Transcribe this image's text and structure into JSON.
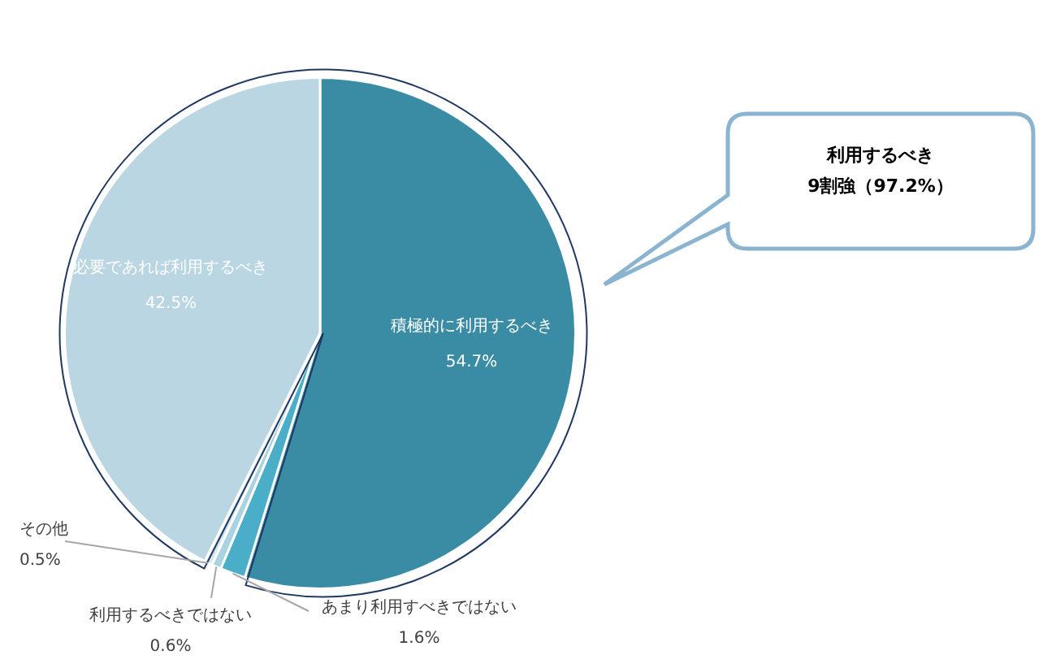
{
  "chart_data": {
    "type": "pie",
    "categories": [
      "積極的に利用するべき",
      "あまり利用すべきではない",
      "利用するべきではない",
      "その他",
      "必要であれば利用するべき"
    ],
    "values": [
      54.7,
      1.6,
      0.6,
      0.5,
      42.5
    ],
    "value_labels": [
      "54.7%",
      "1.6%",
      "0.6%",
      "0.5%",
      "42.5%"
    ],
    "colors": [
      "#3a8ca5",
      "#4aaec8",
      "#a8d3df",
      "#d6e8ee",
      "#b9d6e2"
    ],
    "annotations": [
      "利用するべき\n9割強（97.2%）"
    ],
    "legend": false
  }
}
